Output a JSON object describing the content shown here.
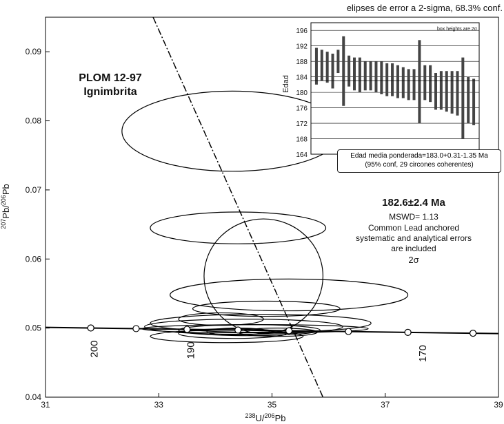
{
  "header": {
    "caption": "elipses de error a 2-sigma, 68.3% conf."
  },
  "chart_data": [
    {
      "type": "scatter",
      "title": "PLOM 12-97",
      "subtitle": "Ignimbrita",
      "xlabel": "238U/206Pb",
      "ylabel": "207Pb/206Pb",
      "xlim": [
        31,
        39
      ],
      "ylim": [
        0.04,
        0.095
      ],
      "x_ticks": [
        31,
        33,
        35,
        37,
        39
      ],
      "y_ticks": [
        0.04,
        0.05,
        0.06,
        0.07,
        0.08,
        0.09
      ],
      "concordia_ticks": [
        {
          "label": "200",
          "x": 31.8
        },
        {
          "label": "190",
          "x": 33.5
        },
        {
          "label": "170",
          "x": 37.6
        }
      ],
      "concordia_points": [
        31.8,
        32.6,
        33.5,
        34.4,
        35.3,
        36.35,
        37.4,
        38.55
      ],
      "regression_line": {
        "x1": 32.9,
        "y1": 0.095,
        "x2": 35.9,
        "y2": 0.04
      },
      "ellipses": [
        {
          "cx": 34.3,
          "cy": 0.0785,
          "rx": 1.95,
          "ry": 0.0058
        },
        {
          "cx": 34.4,
          "cy": 0.0645,
          "rx": 1.55,
          "ry": 0.0023
        },
        {
          "cx": 34.85,
          "cy": 0.0575,
          "rx": 1.05,
          "ry": 0.0083
        },
        {
          "cx": 35.3,
          "cy": 0.0548,
          "rx": 2.1,
          "ry": 0.0023
        },
        {
          "cx": 34.9,
          "cy": 0.0528,
          "rx": 1.3,
          "ry": 0.0011
        },
        {
          "cx": 34.8,
          "cy": 0.0507,
          "rx": 1.95,
          "ry": 0.0013
        },
        {
          "cx": 34.1,
          "cy": 0.0513,
          "rx": 0.75,
          "ry": 0.0009
        },
        {
          "cx": 34.5,
          "cy": 0.0502,
          "rx": 1.75,
          "ry": 0.0011
        },
        {
          "cx": 34.6,
          "cy": 0.0497,
          "rx": 1.25,
          "ry": 0.0008
        },
        {
          "cx": 34.3,
          "cy": 0.0492,
          "rx": 0.95,
          "ry": 0.0007
        },
        {
          "cx": 34.2,
          "cy": 0.0488,
          "rx": 1.35,
          "ry": 0.0009
        },
        {
          "cx": 34.7,
          "cy": 0.0499,
          "rx": 2.0,
          "ry": 0.0006
        },
        {
          "cx": 34.4,
          "cy": 0.0495,
          "rx": 0.55,
          "ry": 0.0005
        },
        {
          "cx": 35.1,
          "cy": 0.0494,
          "rx": 0.7,
          "ry": 0.0006
        }
      ],
      "annotations": {
        "age": "182.6±2.4 Ma",
        "mswd": "MSWD= 1.13",
        "note1": "Common Lead anchored",
        "note2": "systematic and analytical errors",
        "note3": "are included",
        "sigma": "2σ"
      }
    },
    {
      "type": "bar",
      "ylabel": "Edad",
      "ylim": [
        164,
        198
      ],
      "y_ticks": [
        164,
        168,
        172,
        176,
        180,
        184,
        188,
        192,
        196
      ],
      "box_note": "box heights are 2σ",
      "weighted_mean": 183.0,
      "mean_label": "Edad media ponderada=183.0+0.31-1.35  Ma",
      "mean_sub": "(95% conf, 29 circones coherentes)",
      "bars": [
        [
          182,
          191.5
        ],
        [
          183,
          191
        ],
        [
          182.5,
          190.5
        ],
        [
          181,
          190
        ],
        [
          185,
          191
        ],
        [
          176.5,
          194.5
        ],
        [
          181.5,
          189.5
        ],
        [
          180.5,
          189
        ],
        [
          180,
          189
        ],
        [
          180.5,
          188
        ],
        [
          180.5,
          188
        ],
        [
          180,
          188
        ],
        [
          179.5,
          188
        ],
        [
          179,
          187.5
        ],
        [
          179,
          187.5
        ],
        [
          178.5,
          187
        ],
        [
          178.5,
          186.5
        ],
        [
          178,
          186
        ],
        [
          178,
          186
        ],
        [
          172,
          193.5
        ],
        [
          178,
          187
        ],
        [
          177.5,
          187
        ],
        [
          175.5,
          185
        ],
        [
          175.5,
          185.5
        ],
        [
          175,
          185.5
        ],
        [
          174.5,
          185.5
        ],
        [
          174,
          185.5
        ],
        [
          168,
          189
        ],
        [
          172,
          184
        ],
        [
          171.5,
          183.5
        ]
      ]
    }
  ]
}
